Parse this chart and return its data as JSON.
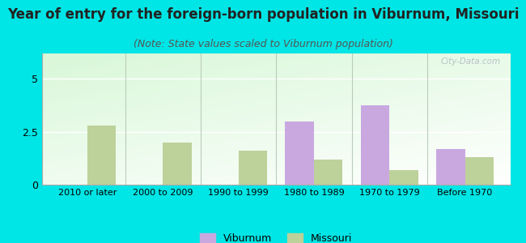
{
  "title": "Year of entry for the foreign-born population in Viburnum, Missouri",
  "subtitle": "(Note: State values scaled to Viburnum population)",
  "categories": [
    "2010 or later",
    "2000 to 2009",
    "1990 to 1999",
    "1980 to 1989",
    "1970 to 1979",
    "Before 1970"
  ],
  "viburnum_values": [
    0,
    0,
    0,
    3.0,
    3.75,
    1.7
  ],
  "missouri_values": [
    2.8,
    2.0,
    1.6,
    1.2,
    0.7,
    1.3
  ],
  "viburnum_color": "#c9a8e0",
  "missouri_color": "#bdd19a",
  "bg_color": "#00e5e5",
  "yticks": [
    0,
    2.5,
    5
  ],
  "ylim": [
    0,
    6.2
  ],
  "bar_width": 0.38,
  "title_fontsize": 12,
  "subtitle_fontsize": 9,
  "legend_labels": [
    "Viburnum",
    "Missouri"
  ],
  "watermark": "City-Data.com"
}
